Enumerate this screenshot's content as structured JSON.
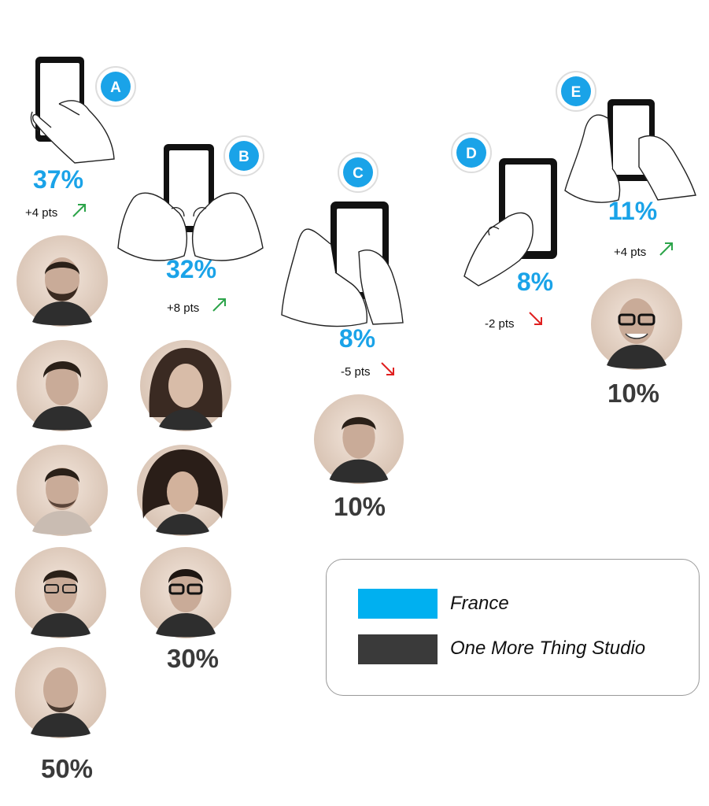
{
  "colors": {
    "france": "#00b0f0",
    "studio": "#3a3a3a",
    "badge": "#1aa3e8",
    "up": "#2ca44a",
    "down": "#e02020"
  },
  "grips": [
    {
      "letter": "A",
      "france_pct": "37%",
      "delta": "+4 pts",
      "trend": "up",
      "studio_pct": "50%"
    },
    {
      "letter": "B",
      "france_pct": "32%",
      "delta": "+8 pts",
      "trend": "up",
      "studio_pct": "30%"
    },
    {
      "letter": "C",
      "france_pct": "8%",
      "delta": "-5 pts",
      "trend": "down",
      "studio_pct": "10%"
    },
    {
      "letter": "D",
      "france_pct": "8%",
      "delta": "-2 pts",
      "trend": "down"
    },
    {
      "letter": "E",
      "france_pct": "11%",
      "delta": "+4 pts",
      "trend": "up",
      "studio_pct": "10%"
    }
  ],
  "legend": {
    "items": [
      {
        "label": "France",
        "color": "#00b0f0"
      },
      {
        "label": "One More Thing Studio",
        "color": "#3a3a3a"
      }
    ]
  }
}
